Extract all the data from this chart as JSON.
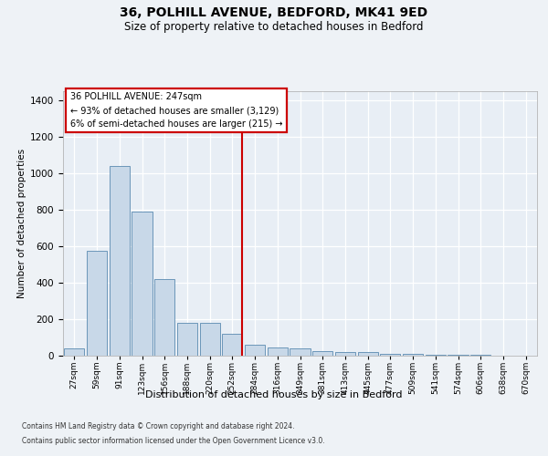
{
  "title1": "36, POLHILL AVENUE, BEDFORD, MK41 9ED",
  "title2": "Size of property relative to detached houses in Bedford",
  "xlabel": "Distribution of detached houses by size in Bedford",
  "ylabel": "Number of detached properties",
  "bar_labels": [
    "27sqm",
    "59sqm",
    "91sqm",
    "123sqm",
    "156sqm",
    "188sqm",
    "220sqm",
    "252sqm",
    "284sqm",
    "316sqm",
    "349sqm",
    "381sqm",
    "413sqm",
    "445sqm",
    "477sqm",
    "509sqm",
    "541sqm",
    "574sqm",
    "606sqm",
    "638sqm",
    "670sqm"
  ],
  "bar_values": [
    40,
    575,
    1040,
    790,
    420,
    180,
    180,
    120,
    60,
    45,
    42,
    25,
    22,
    18,
    10,
    8,
    5,
    5,
    3,
    2,
    0
  ],
  "bar_color": "#c8d8e8",
  "bar_edge_color": "#5a8ab0",
  "vline_pos": 7,
  "property_line_label": "36 POLHILL AVENUE: 247sqm",
  "annotation_line1": "← 93% of detached houses are smaller (3,129)",
  "annotation_line2": "6% of semi-detached houses are larger (215) →",
  "annotation_box_color": "#ffffff",
  "annotation_box_edge": "#cc0000",
  "vline_color": "#cc0000",
  "ylim": [
    0,
    1450
  ],
  "yticks": [
    0,
    200,
    400,
    600,
    800,
    1000,
    1200,
    1400
  ],
  "footer1": "Contains HM Land Registry data © Crown copyright and database right 2024.",
  "footer2": "Contains public sector information licensed under the Open Government Licence v3.0.",
  "bg_color": "#eef2f6",
  "plot_bg_color": "#e8eef5"
}
